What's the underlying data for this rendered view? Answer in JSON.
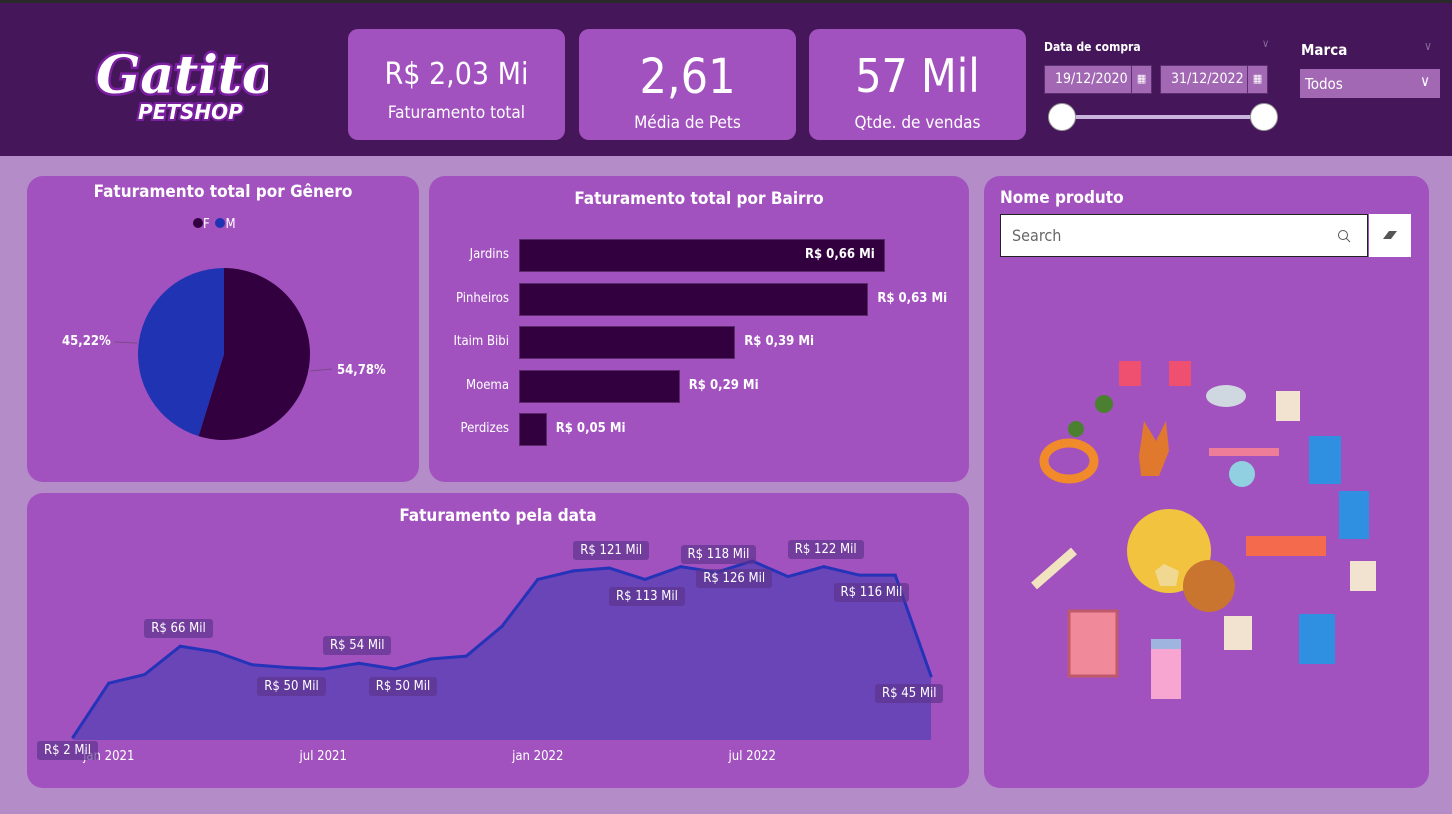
{
  "header": {
    "logo_text": "Gatito",
    "logo_sub": "PETSHOP",
    "kpis": [
      {
        "value": "R$ 2,03 Mi",
        "label": "Faturamento total"
      },
      {
        "value": "2,61",
        "label": "Média de Pets"
      },
      {
        "value": "57 Mil",
        "label": "Qtde. de vendas"
      }
    ],
    "date_filter": {
      "label": "Data de compra",
      "start": "19/12/2020",
      "end": "31/12/2022",
      "range_fraction": [
        0,
        1
      ]
    },
    "brand_filter": {
      "label": "Marca",
      "selected": "Todos"
    }
  },
  "colors": {
    "header": "#45165a",
    "card": "#a252bf",
    "bg": "#b48cc8",
    "F": "#33003f",
    "M": "#1f33b3",
    "bar": "#33003f",
    "line": "#2433b8",
    "area": "#6a45b8"
  },
  "chart_data": [
    {
      "type": "pie",
      "title": "Faturamento total por Gênero",
      "legend": "top",
      "series": [
        {
          "name": "F",
          "value": 54.78,
          "label": "54,78%"
        },
        {
          "name": "M",
          "value": 45.22,
          "label": "45,22%"
        }
      ]
    },
    {
      "type": "bar",
      "title": "Faturamento total por Bairro",
      "orientation": "horizontal",
      "categories": [
        "Jardins",
        "Pinheiros",
        "Itaim Bibi",
        "Moema",
        "Perdizes"
      ],
      "values": [
        0.66,
        0.63,
        0.39,
        0.29,
        0.05
      ],
      "labels": [
        "R$ 0,66 Mi",
        "R$ 0,63 Mi",
        "R$ 0,39 Mi",
        "R$ 0,29 Mi",
        "R$ 0,05 Mi"
      ],
      "unit": "Mi"
    },
    {
      "type": "area",
      "title": "Faturamento pela data",
      "unit": "Mil",
      "x": [
        "2020-12",
        "2021-01",
        "2021-02",
        "2021-03",
        "2021-04",
        "2021-05",
        "2021-06",
        "2021-07",
        "2021-08",
        "2021-09",
        "2021-10",
        "2021-11",
        "2021-12",
        "2022-01",
        "2022-02",
        "2022-03",
        "2022-04",
        "2022-05",
        "2022-06",
        "2022-07",
        "2022-08",
        "2022-09",
        "2022-10",
        "2022-11",
        "2022-12"
      ],
      "values": [
        2,
        40,
        46,
        66,
        62,
        53,
        51,
        50,
        54,
        50,
        57,
        59,
        80,
        113,
        119,
        121,
        113,
        122,
        118,
        126,
        115,
        122,
        116,
        116,
        45
      ],
      "data_labels": [
        {
          "i": 0,
          "text": "R$ 2 Mil"
        },
        {
          "i": 3,
          "text": "R$ 66 Mil"
        },
        {
          "i": 7,
          "text": "R$ 50 Mil"
        },
        {
          "i": 8,
          "text": "R$ 54 Mil"
        },
        {
          "i": 9,
          "text": "R$ 50 Mil"
        },
        {
          "i": 15,
          "text": "R$ 121 Mil"
        },
        {
          "i": 16,
          "text": "R$ 113 Mil"
        },
        {
          "i": 18,
          "text": "R$ 118 Mil"
        },
        {
          "i": 19,
          "text": "R$ 126 Mil"
        },
        {
          "i": 21,
          "text": "R$ 122 Mil"
        },
        {
          "i": 22,
          "text": "R$ 116 Mil"
        },
        {
          "i": 24,
          "text": "R$ 45 Mil"
        }
      ],
      "x_ticks": [
        {
          "i": 1,
          "text": "jan 2021"
        },
        {
          "i": 7,
          "text": "jul 2021"
        },
        {
          "i": 13,
          "text": "jan 2022"
        },
        {
          "i": 19,
          "text": "jul 2022"
        }
      ],
      "grid": false
    }
  ],
  "product_panel": {
    "title": "Nome produto",
    "search_placeholder": "Search"
  }
}
